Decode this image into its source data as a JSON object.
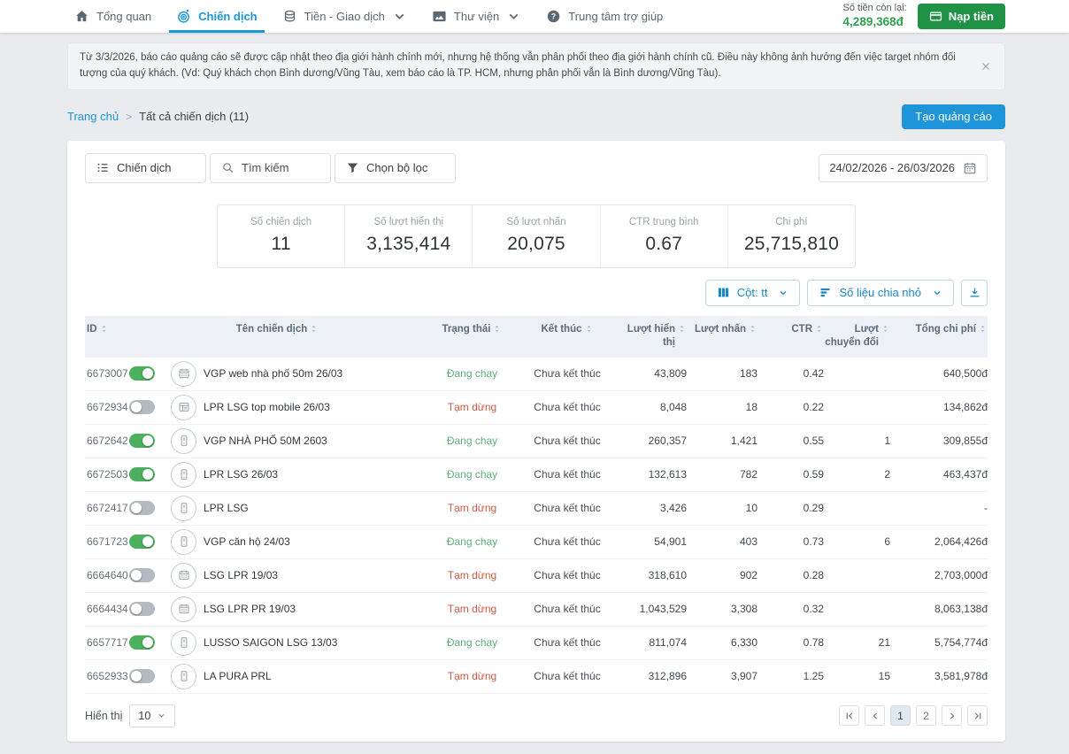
{
  "nav": {
    "items": [
      {
        "label": "Tổng quan",
        "icon": "home",
        "active": false,
        "dropdown": false
      },
      {
        "label": "Chiến dịch",
        "icon": "target",
        "active": true,
        "dropdown": false
      },
      {
        "label": "Tiền - Giao dịch",
        "icon": "coins",
        "active": false,
        "dropdown": true
      },
      {
        "label": "Thư viện",
        "icon": "library",
        "active": false,
        "dropdown": true
      },
      {
        "label": "Trung tâm trợ giúp",
        "icon": "help",
        "active": false,
        "dropdown": false
      }
    ],
    "balance_label": "Số tiền còn lại:",
    "balance_value": "4,289,368đ",
    "topup_label": "Nạp tiền"
  },
  "banner": {
    "text": "Từ 3/3/2026, báo cáo quảng cáo sẽ được cập nhật theo địa giới hành chính mới, nhưng hệ thống vẫn phân phối theo địa giới hành chính cũ. Điều này không ảnh hưởng đến việc target nhóm đối tượng của quý khách. (Vd: Quý khách chọn Bình dương/Vũng Tàu, xem báo cáo là TP. HCM, nhưng phân phối vẫn là Bình dương/Vũng Tàu)."
  },
  "breadcrumb": {
    "home": "Trang chủ",
    "current": "Tất cả chiến dịch (11)"
  },
  "create_button_label": "Tạo quảng cáo",
  "filters": {
    "campaign_label": "Chiến dịch",
    "search_placeholder": "Tìm kiếm",
    "filter_label": "Chọn bộ lọc",
    "date_range": "24/02/2026 - 26/03/2026"
  },
  "stats": [
    {
      "label": "Số chiến dịch",
      "value": "11"
    },
    {
      "label": "Số lượt hiển thị",
      "value": "3,135,414"
    },
    {
      "label": "Số lượt nhấn",
      "value": "20,075"
    },
    {
      "label": "CTR trung bình",
      "value": "0.67"
    },
    {
      "label": "Chi phí",
      "value": "25,715,810"
    }
  ],
  "table_controls": {
    "columns_label": "Cột: tt",
    "breakdown_label": "Số liệu chia nhỏ"
  },
  "table": {
    "headers": [
      "ID",
      "Tên chiến dịch",
      "Trạng thái",
      "Kết thúc",
      "Lượt hiển thị",
      "Lượt nhấn",
      "CTR",
      "Lượt chuyển đổi",
      "Tổng chi phí"
    ],
    "rows": [
      {
        "id": "6673007",
        "enabled": true,
        "icon": "calendar-grid",
        "name": "VGP web nhà phố 50m 26/03",
        "status": "Đang chạy",
        "end": "Chưa kết thúc",
        "impressions": "43,809",
        "clicks": "183",
        "ctr": "0.42",
        "conversions": "",
        "cost": "640,500đ"
      },
      {
        "id": "6672934",
        "enabled": false,
        "icon": "browser-window",
        "name": "LPR LSG top mobile 26/03",
        "status": "Tạm dừng",
        "end": "Chưa kết thúc",
        "impressions": "8,048",
        "clicks": "18",
        "ctr": "0.22",
        "conversions": "",
        "cost": "134,862đ"
      },
      {
        "id": "6672642",
        "enabled": true,
        "icon": "mobile",
        "name": "VGP NHÀ PHỐ 50M 2603",
        "status": "Đang chạy",
        "end": "Chưa kết thúc",
        "impressions": "260,357",
        "clicks": "1,421",
        "ctr": "0.55",
        "conversions": "1",
        "cost": "309,855đ"
      },
      {
        "id": "6672503",
        "enabled": true,
        "icon": "mobile",
        "name": "LPR LSG 26/03",
        "status": "Đang chạy",
        "end": "Chưa kết thúc",
        "impressions": "132,613",
        "clicks": "782",
        "ctr": "0.59",
        "conversions": "2",
        "cost": "463,437đ"
      },
      {
        "id": "6672417",
        "enabled": false,
        "icon": "mobile",
        "name": "LPR LSG",
        "status": "Tạm dừng",
        "end": "Chưa kết thúc",
        "impressions": "3,426",
        "clicks": "10",
        "ctr": "0.29",
        "conversions": "",
        "cost": "-"
      },
      {
        "id": "6671723",
        "enabled": true,
        "icon": "mobile",
        "name": "VGP căn hộ 24/03",
        "status": "Đang chạy",
        "end": "Chưa kết thúc",
        "impressions": "54,901",
        "clicks": "403",
        "ctr": "0.73",
        "conversions": "6",
        "cost": "2,064,426đ"
      },
      {
        "id": "6664640",
        "enabled": false,
        "icon": "calendar-grid",
        "name": "LSG LPR 19/03",
        "status": "Tạm dừng",
        "end": "Chưa kết thúc",
        "impressions": "318,610",
        "clicks": "902",
        "ctr": "0.28",
        "conversions": "",
        "cost": "2,703,000đ"
      },
      {
        "id": "6664434",
        "enabled": false,
        "icon": "calendar-grid",
        "name": "LSG LPR PR 19/03",
        "status": "Tạm dừng",
        "end": "Chưa kết thúc",
        "impressions": "1,043,529",
        "clicks": "3,308",
        "ctr": "0.32",
        "conversions": "",
        "cost": "8,063,138đ"
      },
      {
        "id": "6657717",
        "enabled": true,
        "icon": "mobile",
        "name": "LUSSO SAIGON LSG 13/03",
        "status": "Đang chạy",
        "end": "Chưa kết thúc",
        "impressions": "811,074",
        "clicks": "6,330",
        "ctr": "0.78",
        "conversions": "21",
        "cost": "5,754,774đ"
      },
      {
        "id": "6652933",
        "enabled": false,
        "icon": "mobile",
        "name": "LA PURA PRL",
        "status": "Tạm dừng",
        "end": "Chưa kết thúc",
        "impressions": "312,896",
        "clicks": "3,907",
        "ctr": "1.25",
        "conversions": "15",
        "cost": "3,581,978đ"
      }
    ]
  },
  "footer": {
    "show_label": "Hiển thị",
    "page_size": "10",
    "pages": [
      "1",
      "2"
    ],
    "active_page": "1"
  },
  "colors": {
    "accent_blue": "#1b95d6",
    "button_green": "#1f9245",
    "balance_green": "#2f9e4f",
    "toggle_on_green": "#4cb05f",
    "status_running_green": "#5fae79",
    "status_paused_red": "#cb5a41",
    "table_header_bg": "#edf0f4",
    "page_bg": "#e9ebee"
  }
}
